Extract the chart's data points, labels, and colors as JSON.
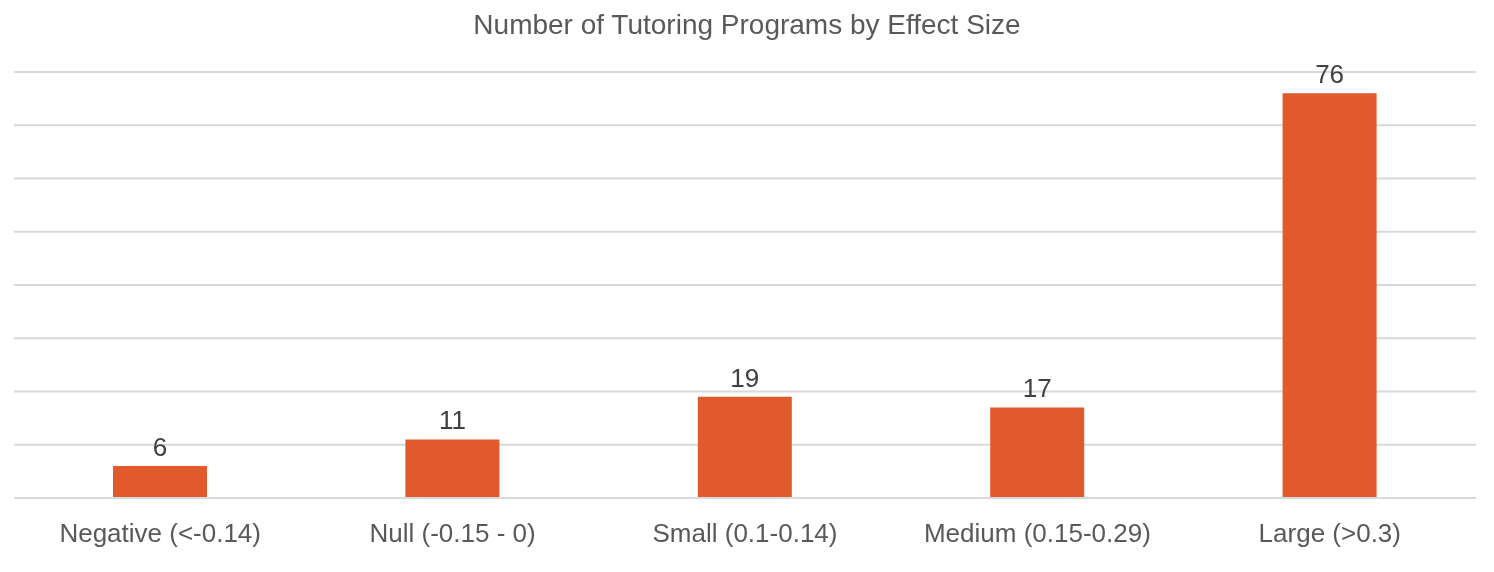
{
  "chart_data": {
    "type": "bar",
    "title": "Number of Tutoring Programs by Effect Size",
    "categories": [
      "Negative (<-0.14)",
      "Null (-0.15 - 0)",
      "Small (0.1-0.14)",
      "Medium (0.15-0.29)",
      "Large (>0.3)"
    ],
    "values": [
      6,
      11,
      19,
      17,
      76
    ],
    "color": "#e05a2b",
    "grid": "y",
    "tick_labels": "x",
    "data_labels": true
  }
}
